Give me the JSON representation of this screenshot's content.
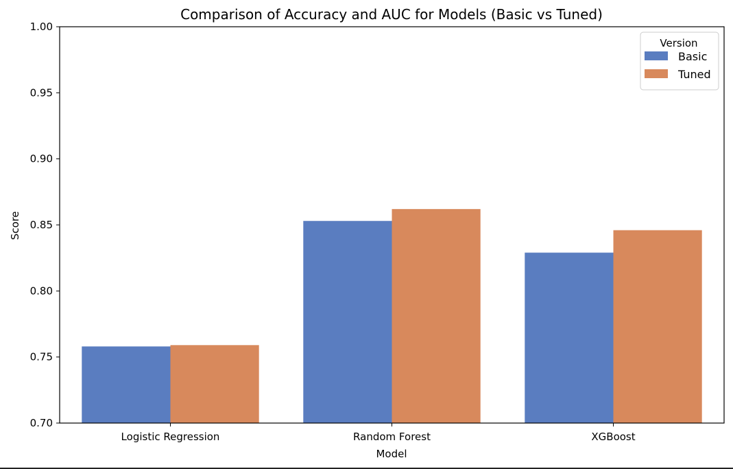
{
  "chart_data": {
    "type": "bar",
    "title": "Comparison of Accuracy and AUC for Models (Basic vs Tuned)",
    "xlabel": "Model",
    "ylabel": "Score",
    "categories": [
      "Logistic Regression",
      "Random Forest",
      "XGBoost"
    ],
    "series": [
      {
        "name": "Basic",
        "values": [
          0.758,
          0.853,
          0.829
        ],
        "color": "#5a7dc0"
      },
      {
        "name": "Tuned",
        "values": [
          0.759,
          0.862,
          0.846
        ],
        "color": "#d8895c"
      }
    ],
    "ylim": [
      0.7,
      1.0
    ],
    "yticks": [
      0.7,
      0.75,
      0.8,
      0.85,
      0.9,
      0.95,
      1.0
    ],
    "ytick_labels": [
      "0.70",
      "0.75",
      "0.80",
      "0.85",
      "0.90",
      "0.95",
      "1.00"
    ],
    "legend": {
      "title": "Version",
      "placement": "top-right"
    },
    "grid": false
  }
}
